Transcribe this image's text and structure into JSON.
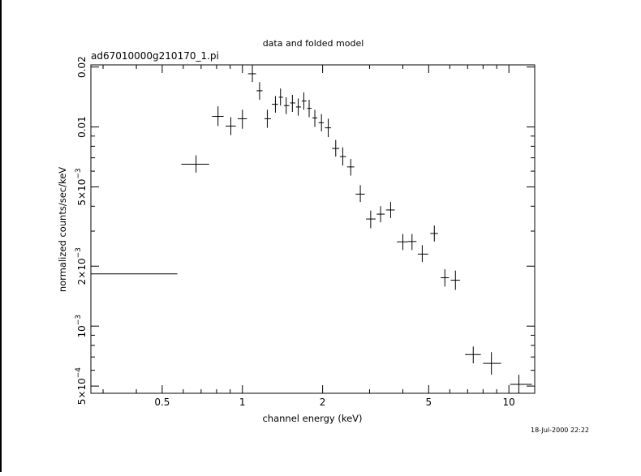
{
  "window": {
    "timestamp": "18-Jul-2000 22:22"
  },
  "chart_data": {
    "type": "scatter",
    "title": "data and folded model",
    "subtitle": "ad67010000g210170_1.pi",
    "xlabel": "channel energy (keV)",
    "ylabel": "normalized counts/sec/keV",
    "xscale": "log",
    "yscale": "log",
    "xlim": [
      0.27,
      12.5
    ],
    "ylim": [
      0.00046,
      0.0205
    ],
    "xticks": [
      {
        "value": 0.5,
        "label": "0.5"
      },
      {
        "value": 1,
        "label": "1"
      },
      {
        "value": 2,
        "label": "2"
      },
      {
        "value": 5,
        "label": "5"
      },
      {
        "value": 10,
        "label": "10"
      }
    ],
    "yticks": [
      {
        "value": 0.0005,
        "mant": "5×10",
        "exp": "−4"
      },
      {
        "value": 0.001,
        "mant": "10",
        "exp": "−3"
      },
      {
        "value": 0.002,
        "mant": "2×10",
        "exp": "−3"
      },
      {
        "value": 0.005,
        "mant": "5×10",
        "exp": "−3"
      },
      {
        "value": 0.01,
        "mant": "0.01",
        "exp": ""
      },
      {
        "value": 0.02,
        "mant": "0.02",
        "exp": ""
      }
    ],
    "grid": false,
    "color": "#000000",
    "points": [
      {
        "x": 0.27,
        "xlo": 0.27,
        "xhi": 0.57,
        "y": 0.00183,
        "ylo": 0.00165,
        "yhi": 0.00202
      },
      {
        "x": 0.67,
        "xlo": 0.59,
        "xhi": 0.75,
        "y": 0.0065,
        "ylo": 0.0059,
        "yhi": 0.0072
      },
      {
        "x": 0.81,
        "xlo": 0.77,
        "xhi": 0.85,
        "y": 0.0113,
        "ylo": 0.0101,
        "yhi": 0.0127
      },
      {
        "x": 0.905,
        "xlo": 0.865,
        "xhi": 0.945,
        "y": 0.0101,
        "ylo": 0.0091,
        "yhi": 0.0112
      },
      {
        "x": 1.0,
        "xlo": 0.96,
        "xhi": 1.04,
        "y": 0.011,
        "ylo": 0.0098,
        "yhi": 0.0122
      },
      {
        "x": 1.09,
        "xlo": 1.05,
        "xhi": 1.125,
        "y": 0.0185,
        "ylo": 0.0168,
        "yhi": 0.0205
      },
      {
        "x": 1.16,
        "xlo": 1.13,
        "xhi": 1.19,
        "y": 0.0152,
        "ylo": 0.0137,
        "yhi": 0.0168
      },
      {
        "x": 1.24,
        "xlo": 1.21,
        "xhi": 1.28,
        "y": 0.011,
        "ylo": 0.0099,
        "yhi": 0.0122
      },
      {
        "x": 1.33,
        "xlo": 1.29,
        "xhi": 1.36,
        "y": 0.013,
        "ylo": 0.0118,
        "yhi": 0.0143
      },
      {
        "x": 1.39,
        "xlo": 1.37,
        "xhi": 1.42,
        "y": 0.0141,
        "ylo": 0.0128,
        "yhi": 0.0156
      },
      {
        "x": 1.46,
        "xlo": 1.43,
        "xhi": 1.5,
        "y": 0.0128,
        "ylo": 0.0116,
        "yhi": 0.0141
      },
      {
        "x": 1.54,
        "xlo": 1.51,
        "xhi": 1.58,
        "y": 0.0132,
        "ylo": 0.0119,
        "yhi": 0.0145
      },
      {
        "x": 1.62,
        "xlo": 1.59,
        "xhi": 1.66,
        "y": 0.0126,
        "ylo": 0.0114,
        "yhi": 0.0139
      },
      {
        "x": 1.7,
        "xlo": 1.67,
        "xhi": 1.74,
        "y": 0.0135,
        "ylo": 0.0122,
        "yhi": 0.0149
      },
      {
        "x": 1.78,
        "xlo": 1.75,
        "xhi": 1.82,
        "y": 0.0124,
        "ylo": 0.0112,
        "yhi": 0.0137
      },
      {
        "x": 1.87,
        "xlo": 1.83,
        "xhi": 1.91,
        "y": 0.0111,
        "ylo": 0.01,
        "yhi": 0.0122
      },
      {
        "x": 1.98,
        "xlo": 1.93,
        "xhi": 2.02,
        "y": 0.0105,
        "ylo": 0.0095,
        "yhi": 0.0116
      },
      {
        "x": 2.1,
        "xlo": 2.04,
        "xhi": 2.15,
        "y": 0.0099,
        "ylo": 0.0089,
        "yhi": 0.011
      },
      {
        "x": 2.24,
        "xlo": 2.17,
        "xhi": 2.31,
        "y": 0.0078,
        "ylo": 0.0071,
        "yhi": 0.0086
      },
      {
        "x": 2.38,
        "xlo": 2.32,
        "xhi": 2.45,
        "y": 0.0071,
        "ylo": 0.0064,
        "yhi": 0.0079
      },
      {
        "x": 2.55,
        "xlo": 2.47,
        "xhi": 2.63,
        "y": 0.0063,
        "ylo": 0.0057,
        "yhi": 0.0069
      },
      {
        "x": 2.77,
        "xlo": 2.66,
        "xhi": 2.88,
        "y": 0.0046,
        "ylo": 0.0042,
        "yhi": 0.0051
      },
      {
        "x": 3.03,
        "xlo": 2.91,
        "xhi": 3.16,
        "y": 0.00345,
        "ylo": 0.0031,
        "yhi": 0.0038
      },
      {
        "x": 3.3,
        "xlo": 3.19,
        "xhi": 3.42,
        "y": 0.00365,
        "ylo": 0.00332,
        "yhi": 0.004
      },
      {
        "x": 3.6,
        "xlo": 3.46,
        "xhi": 3.73,
        "y": 0.00383,
        "ylo": 0.00349,
        "yhi": 0.0042
      },
      {
        "x": 4.0,
        "xlo": 3.8,
        "xhi": 4.17,
        "y": 0.00265,
        "ylo": 0.00241,
        "yhi": 0.0029
      },
      {
        "x": 4.33,
        "xlo": 4.17,
        "xhi": 4.5,
        "y": 0.00266,
        "ylo": 0.00241,
        "yhi": 0.0029
      },
      {
        "x": 4.73,
        "xlo": 4.55,
        "xhi": 4.98,
        "y": 0.0023,
        "ylo": 0.0021,
        "yhi": 0.00255
      },
      {
        "x": 5.25,
        "xlo": 5.07,
        "xhi": 5.42,
        "y": 0.00292,
        "ylo": 0.00266,
        "yhi": 0.0032
      },
      {
        "x": 5.75,
        "xlo": 5.55,
        "xhi": 5.95,
        "y": 0.00175,
        "ylo": 0.00158,
        "yhi": 0.00193
      },
      {
        "x": 6.3,
        "xlo": 6.05,
        "xhi": 6.55,
        "y": 0.0017,
        "ylo": 0.00152,
        "yhi": 0.0019
      },
      {
        "x": 7.35,
        "xlo": 6.85,
        "xhi": 7.85,
        "y": 0.00072,
        "ylo": 0.00065,
        "yhi": 0.00079
      },
      {
        "x": 8.6,
        "xlo": 8.0,
        "xhi": 9.35,
        "y": 0.00065,
        "ylo": 0.00057,
        "yhi": 0.00074
      },
      {
        "x": 10.9,
        "xlo": 10.1,
        "xhi": 12.2,
        "y": 0.00051,
        "ylo": 0.00046,
        "yhi": 0.00057
      }
    ]
  }
}
